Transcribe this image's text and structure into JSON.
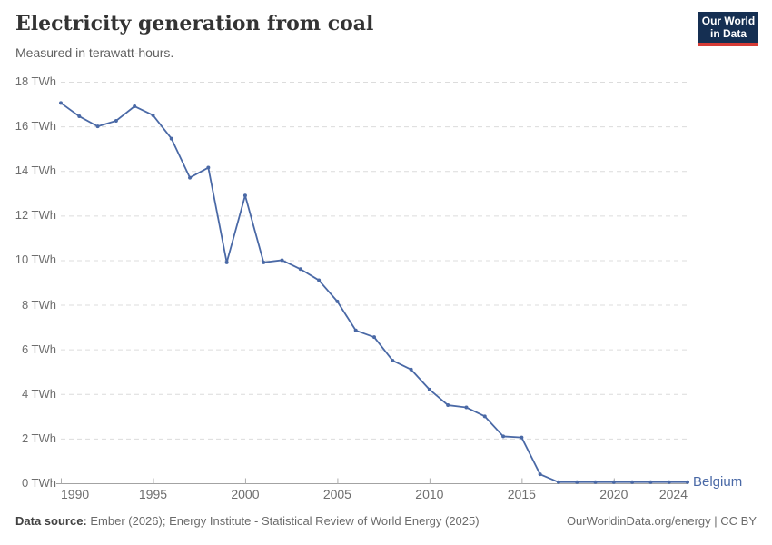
{
  "header": {
    "title": "Electricity generation from coal",
    "subtitle": "Measured in terawatt-hours."
  },
  "logo": {
    "line1": "Our World",
    "line2": "in Data"
  },
  "footer": {
    "data_source_label": "Data source:",
    "data_source_text": " Ember (2026); Energy Institute - Statistical Review of World Energy (2025)",
    "credit": "OurWorldinData.org/energy | CC BY"
  },
  "colors": {
    "line": "#4A69A6",
    "logo_bg": "#152F52",
    "logo_accent": "#D63B36",
    "gridline": "#DCDCDC",
    "axis_line": "#A3A3A3",
    "tick_mark": "#ADADAD",
    "tick_label": "#6E6E6E"
  },
  "chart_data": {
    "type": "line",
    "title": "Electricity generation from coal",
    "subtitle": "Measured in terawatt-hours.",
    "unit": "TWh",
    "xlabel": "",
    "ylabel": "TWh",
    "ylim": [
      0,
      18
    ],
    "yticks": [
      0,
      2,
      4,
      6,
      8,
      10,
      12,
      14,
      16,
      18
    ],
    "ytick_labels": [
      "0 TWh",
      "2 TWh",
      "4 TWh",
      "6 TWh",
      "8 TWh",
      "10 TWh",
      "12 TWh",
      "14 TWh",
      "16 TWh",
      "18 TWh"
    ],
    "xticks": [
      1990,
      1995,
      2000,
      2005,
      2010,
      2015,
      2020,
      2024
    ],
    "xtick_labels": [
      "1990",
      "1995",
      "2000",
      "2005",
      "2010",
      "2015",
      "2020",
      "2024"
    ],
    "grid": "horizontal-dashed",
    "legend_position": "end-of-line",
    "x": [
      1990,
      1991,
      1992,
      1993,
      1994,
      1995,
      1996,
      1997,
      1998,
      1999,
      2000,
      2001,
      2002,
      2003,
      2004,
      2005,
      2006,
      2007,
      2008,
      2009,
      2010,
      2011,
      2012,
      2013,
      2014,
      2015,
      2016,
      2017,
      2018,
      2019,
      2020,
      2021,
      2022,
      2023,
      2024
    ],
    "series": [
      {
        "name": "Belgium",
        "color": "#4A69A6",
        "values": [
          17.05,
          16.45,
          16.0,
          16.25,
          16.9,
          16.5,
          15.45,
          13.7,
          14.15,
          9.9,
          12.9,
          9.9,
          10.0,
          9.6,
          9.1,
          8.15,
          6.85,
          6.55,
          5.5,
          5.1,
          4.2,
          3.5,
          3.4,
          3.0,
          2.1,
          2.05,
          0.4,
          0.05,
          0.05,
          0.05,
          0.05,
          0.05,
          0.05,
          0.05,
          0.05
        ]
      }
    ]
  }
}
